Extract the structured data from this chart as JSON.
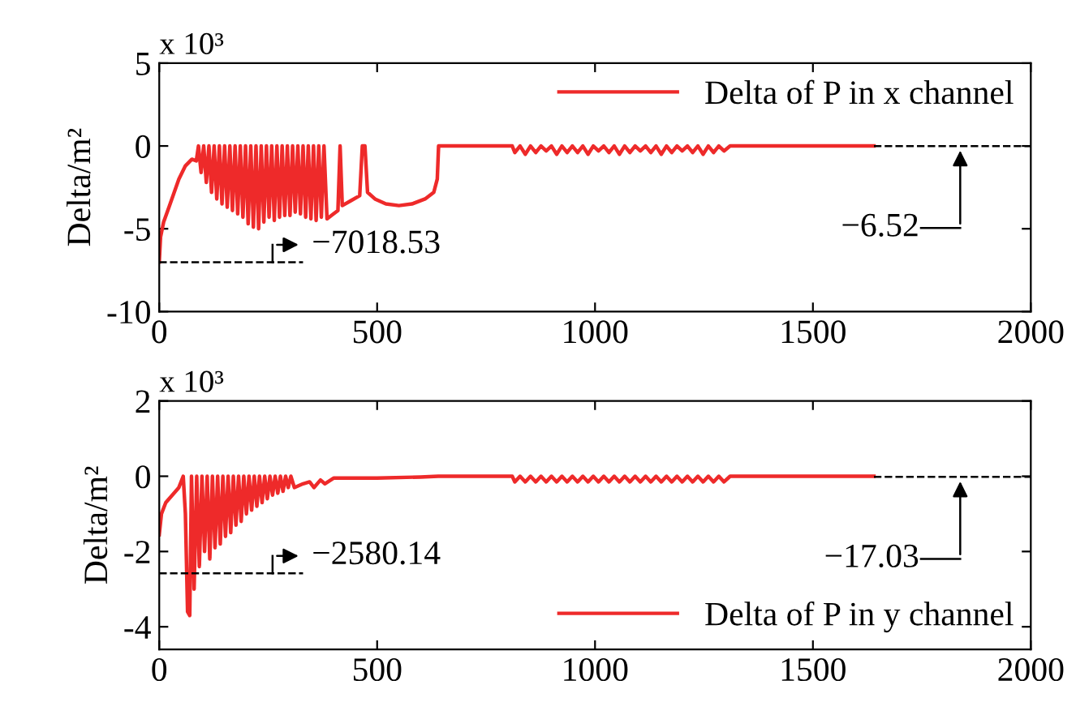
{
  "chart_data": [
    {
      "type": "line",
      "ylabel": "Delta/m²",
      "xlim": [
        0,
        2000
      ],
      "xticks": [
        0,
        500,
        1000,
        1500,
        2000
      ],
      "ylim": [
        -10,
        5
      ],
      "yticks": [
        -10,
        -5,
        0,
        5
      ],
      "grid": false,
      "legend": "top right",
      "annotations": [
        "x 10³"
      ],
      "ref_lines": [
        {
          "axis": "y",
          "value": -7.01853,
          "label": "−7018.53",
          "color": "#000000",
          "line_style": "dashed"
        },
        {
          "axis": "y",
          "value": -0.00652,
          "label": "−6.52",
          "color": "#000000",
          "line_style": "dashed"
        }
      ],
      "series": [
        {
          "name": "Delta of P in x channel",
          "color": "#ee2a2a",
          "x": [
            0,
            3,
            10,
            25,
            45,
            60,
            75,
            85,
            90,
            96,
            102,
            108,
            114,
            120,
            126,
            132,
            138,
            144,
            150,
            156,
            162,
            168,
            174,
            180,
            186,
            192,
            198,
            204,
            210,
            216,
            222,
            228,
            234,
            240,
            246,
            252,
            258,
            264,
            270,
            276,
            282,
            288,
            294,
            300,
            306,
            312,
            318,
            324,
            330,
            336,
            342,
            348,
            354,
            360,
            366,
            372,
            378,
            385,
            400,
            410,
            415,
            420,
            440,
            460,
            466,
            472,
            478,
            495,
            520,
            550,
            580,
            610,
            630,
            638,
            641,
            810,
            816,
            828,
            840,
            852,
            864,
            876,
            888,
            900,
            912,
            924,
            936,
            948,
            960,
            972,
            984,
            996,
            1008,
            1020,
            1032,
            1044,
            1056,
            1068,
            1080,
            1092,
            1104,
            1116,
            1128,
            1140,
            1152,
            1164,
            1176,
            1188,
            1200,
            1212,
            1224,
            1236,
            1248,
            1260,
            1272,
            1284,
            1296,
            1310,
            1640
          ],
          "values": [
            -7.0,
            -5.5,
            -4.6,
            -3.5,
            -2.0,
            -1.2,
            -0.8,
            -0.9,
            0,
            -1.6,
            0,
            -2.2,
            0,
            -2.8,
            0,
            -3.2,
            0,
            -3.5,
            0,
            -3.7,
            0,
            -3.9,
            0,
            -4.1,
            0,
            -4.3,
            0,
            -4.7,
            0,
            -4.9,
            0,
            -5.0,
            0,
            -4.6,
            0,
            -4.3,
            0,
            -4.5,
            0,
            -4.3,
            0,
            -4.2,
            0,
            -4.2,
            0,
            -4.0,
            0,
            -4.1,
            0,
            -4.3,
            0,
            -4.4,
            0,
            -4.5,
            0,
            -4.3,
            0,
            -4.4,
            -4.1,
            -3.9,
            0,
            -3.6,
            -3.3,
            -3.0,
            0,
            0,
            -2.8,
            -3.2,
            -3.5,
            -3.6,
            -3.5,
            -3.2,
            -2.8,
            -2.0,
            0,
            0,
            -0.4,
            0,
            -0.5,
            0,
            -0.4,
            0,
            -0.3,
            0,
            -0.5,
            0,
            -0.4,
            0,
            -0.4,
            0,
            -0.5,
            0,
            -0.3,
            0,
            -0.4,
            0,
            -0.5,
            0,
            -0.4,
            0,
            -0.3,
            0,
            -0.4,
            0,
            -0.5,
            0,
            -0.4,
            0,
            -0.3,
            0,
            -0.4,
            0,
            -0.5,
            0,
            -0.4,
            0,
            -0.3,
            0,
            0
          ]
        }
      ]
    },
    {
      "type": "line",
      "ylabel": "Delta/m²",
      "xlim": [
        0,
        2000
      ],
      "xticks": [
        0,
        500,
        1000,
        1500,
        2000
      ],
      "ylim": [
        -4.6,
        2
      ],
      "yticks": [
        -4,
        -2,
        0,
        2
      ],
      "grid": false,
      "legend": "bottom right",
      "annotations": [
        "x 10³"
      ],
      "ref_lines": [
        {
          "axis": "y",
          "value": -2.58014,
          "label": "−2580.14",
          "color": "#000000",
          "line_style": "dashed"
        },
        {
          "axis": "y",
          "value": -0.01703,
          "label": "−17.03",
          "color": "#000000",
          "line_style": "dashed"
        }
      ],
      "series": [
        {
          "name": "Delta of P in y channel",
          "color": "#ee2a2a",
          "x": [
            0,
            5,
            15,
            30,
            45,
            55,
            60,
            65,
            70,
            74,
            80,
            86,
            92,
            98,
            104,
            110,
            116,
            122,
            128,
            134,
            140,
            146,
            152,
            158,
            164,
            170,
            176,
            182,
            188,
            194,
            200,
            206,
            212,
            218,
            224,
            230,
            236,
            242,
            248,
            254,
            260,
            266,
            272,
            278,
            284,
            290,
            296,
            302,
            310,
            330,
            345,
            355,
            370,
            380,
            400,
            500,
            600,
            640,
            810,
            816,
            828,
            840,
            852,
            864,
            876,
            888,
            900,
            912,
            924,
            936,
            948,
            960,
            972,
            984,
            996,
            1008,
            1020,
            1032,
            1044,
            1056,
            1068,
            1080,
            1092,
            1104,
            1116,
            1128,
            1140,
            1152,
            1164,
            1176,
            1188,
            1200,
            1212,
            1224,
            1236,
            1248,
            1260,
            1272,
            1284,
            1296,
            1310,
            1640
          ],
          "values": [
            -1.55,
            -1.0,
            -0.7,
            -0.5,
            -0.3,
            0,
            -1.0,
            -3.6,
            -3.7,
            0,
            -3.0,
            0,
            -2.4,
            0,
            -2.0,
            0,
            -2.2,
            0,
            -1.9,
            0,
            -1.8,
            0,
            -1.6,
            0,
            -1.5,
            0,
            -1.3,
            0,
            -1.2,
            0,
            -1.0,
            0,
            -0.9,
            0,
            -0.8,
            0,
            -0.7,
            0,
            -0.6,
            0,
            -0.5,
            0,
            -0.45,
            0,
            -0.4,
            0,
            -0.3,
            0,
            -0.3,
            -0.2,
            -0.15,
            -0.3,
            -0.1,
            -0.2,
            -0.05,
            -0.05,
            -0.02,
            0,
            0,
            -0.15,
            0,
            -0.15,
            0,
            -0.15,
            0,
            -0.15,
            0,
            -0.15,
            0,
            -0.15,
            0,
            -0.15,
            0,
            -0.15,
            0,
            -0.15,
            0,
            -0.15,
            0,
            -0.15,
            0,
            -0.15,
            0,
            -0.15,
            0,
            -0.15,
            0,
            -0.15,
            0,
            -0.15,
            0,
            -0.15,
            0,
            -0.15,
            0,
            -0.15,
            0,
            -0.15,
            0,
            -0.15,
            0,
            0
          ]
        }
      ]
    }
  ]
}
